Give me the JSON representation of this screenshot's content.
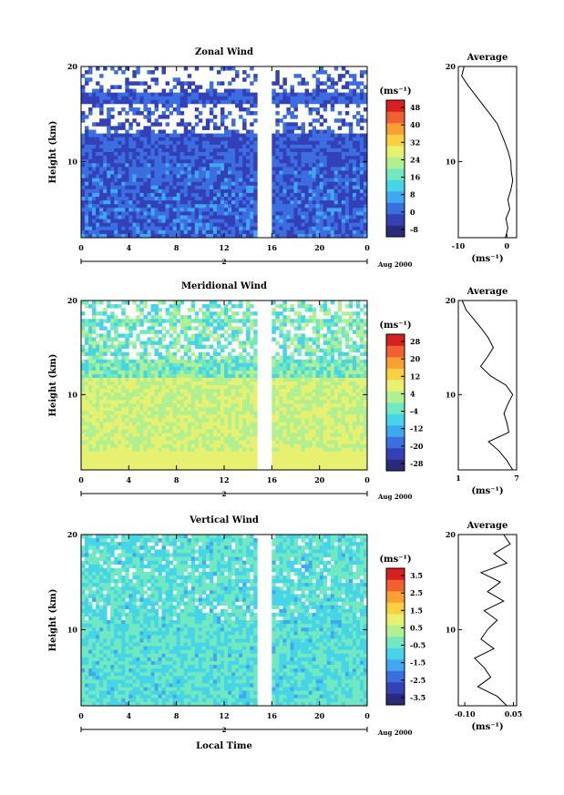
{
  "chart_data": [
    {
      "type": "heatmap",
      "title": "Zonal Wind",
      "xlabel": "",
      "ylabel": "Height (km)",
      "x_ticks": [
        "0",
        "4",
        "8",
        "12",
        "16",
        "20",
        "0"
      ],
      "y_ticks": [
        "10",
        "20"
      ],
      "xlim": [
        0,
        24
      ],
      "ylim": [
        2,
        20
      ],
      "day_marker": "2",
      "date_label": "Aug 2000",
      "colorbar": {
        "unit_label": "(ms⁻¹)",
        "ticks": [
          "48",
          "40",
          "32",
          "24",
          "16",
          "8",
          "0",
          "-8"
        ],
        "min": -12,
        "max": 52
      },
      "average_profile": {
        "title": "Average",
        "x_ticks": [
          "-10",
          "0"
        ],
        "y_ticks": [
          "10",
          "20"
        ],
        "xlim": [
          -10,
          2
        ],
        "xlabel": "(ms⁻¹)",
        "heights": [
          2,
          3,
          4,
          5,
          6,
          7,
          8,
          9,
          10,
          11,
          12,
          13,
          14,
          15,
          16,
          17,
          18,
          19,
          20
        ],
        "values": [
          -0.3,
          0.2,
          -0.2,
          0.6,
          0.2,
          0.8,
          1.2,
          0.9,
          0.8,
          0.3,
          -0.4,
          -1.2,
          -2.0,
          -3.5,
          -5.0,
          -6.5,
          -8.0,
          -9.3,
          -8.8
        ]
      }
    },
    {
      "type": "heatmap",
      "title": "Meridional Wind",
      "xlabel": "",
      "ylabel": "Height (km)",
      "x_ticks": [
        "0",
        "4",
        "8",
        "12",
        "16",
        "20",
        "0"
      ],
      "y_ticks": [
        "10",
        "20"
      ],
      "xlim": [
        0,
        24
      ],
      "ylim": [
        2,
        20
      ],
      "day_marker": "2",
      "date_label": "Aug 2000",
      "colorbar": {
        "unit_label": "(ms⁻¹)",
        "ticks": [
          "28",
          "20",
          "12",
          "4",
          "-4",
          "-12",
          "-20",
          "-28"
        ],
        "min": -32,
        "max": 32
      },
      "average_profile": {
        "title": "Average",
        "x_ticks": [
          "1",
          "7"
        ],
        "y_ticks": [
          "10",
          "20"
        ],
        "xlim": [
          1,
          7
        ],
        "xlabel": "(ms⁻¹)",
        "heights": [
          2,
          3,
          4,
          5,
          6,
          7,
          8,
          9,
          10,
          11,
          12,
          13,
          14,
          15,
          16,
          17,
          18,
          19,
          20
        ],
        "values": [
          6.6,
          6.0,
          5.2,
          4.1,
          6.2,
          6.0,
          5.7,
          6.1,
          6.6,
          5.9,
          4.3,
          3.3,
          4.0,
          4.6,
          4.1,
          3.4,
          2.6,
          1.8,
          1.4
        ]
      }
    },
    {
      "type": "heatmap",
      "title": "Vertical Wind",
      "xlabel": "Local Time",
      "ylabel": "Height (km)",
      "x_ticks": [
        "0",
        "4",
        "8",
        "12",
        "16",
        "20",
        "0"
      ],
      "y_ticks": [
        "10",
        "20"
      ],
      "xlim": [
        0,
        24
      ],
      "ylim": [
        2,
        20
      ],
      "day_marker": "2",
      "date_label": "Aug 2000",
      "colorbar": {
        "unit_label": "(ms⁻¹)",
        "ticks": [
          "3.5",
          "2.5",
          "1.5",
          "0.5",
          "-0.5",
          "-1.5",
          "-2.5",
          "-3.5"
        ],
        "min": -4,
        "max": 4
      },
      "average_profile": {
        "title": "Average",
        "x_ticks": [
          "-0.10",
          "0.05"
        ],
        "y_ticks": [
          "10",
          "20"
        ],
        "xlim": [
          -0.12,
          0.06
        ],
        "xlabel": "(ms⁻¹)",
        "heights": [
          2,
          3,
          4,
          5,
          6,
          7,
          8,
          9,
          10,
          11,
          12,
          13,
          14,
          15,
          16,
          17,
          18,
          19,
          20
        ],
        "values": [
          0.03,
          0.0,
          -0.06,
          -0.02,
          -0.04,
          -0.07,
          -0.01,
          -0.05,
          -0.03,
          0.0,
          -0.04,
          0.02,
          -0.03,
          0.01,
          -0.05,
          0.03,
          -0.01,
          0.04,
          0.02
        ]
      }
    }
  ],
  "colors": {
    "background": "#ffffff",
    "axis": "#000000"
  },
  "palette": [
    "#2a2a7a",
    "#3340b8",
    "#3b6ee0",
    "#40a8f0",
    "#45d4e8",
    "#70e8c0",
    "#b0f090",
    "#e8f070",
    "#f8d040",
    "#f8a030",
    "#f06030",
    "#d82020"
  ]
}
